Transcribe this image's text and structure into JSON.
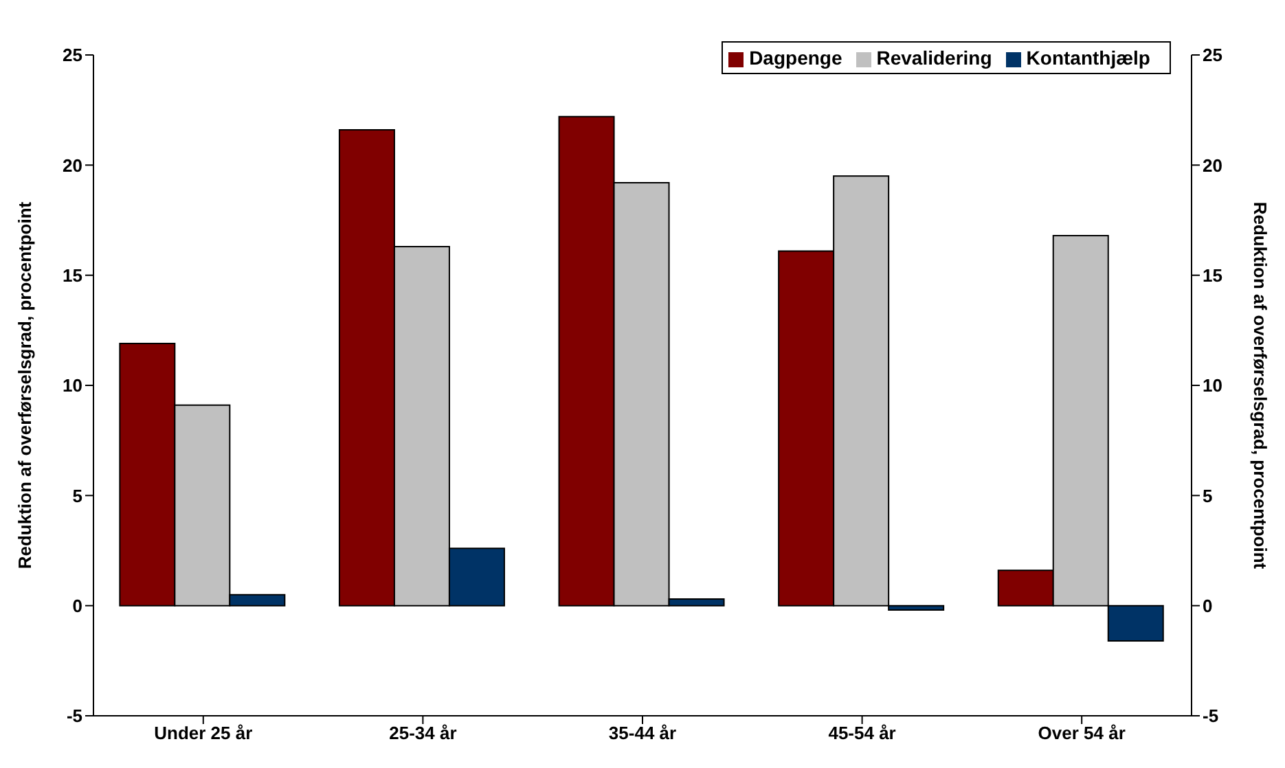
{
  "chart_data": {
    "type": "bar",
    "categories": [
      "Under 25 år",
      "25-34 år",
      "35-44 år",
      "45-54 år",
      "Over 54 år"
    ],
    "series": [
      {
        "name": "Dagpenge",
        "color": "#800000",
        "values": [
          11.9,
          21.6,
          22.2,
          16.1,
          1.6
        ]
      },
      {
        "name": "Revalidering",
        "color": "#c0c0c0",
        "values": [
          9.1,
          16.3,
          19.2,
          19.5,
          16.8
        ]
      },
      {
        "name": "Kontanthjælp",
        "color": "#003366",
        "values": [
          0.5,
          2.6,
          0.3,
          -0.2,
          -1.6
        ]
      }
    ],
    "ylabel": "Reduktion af overførselsgrad, procentpoint",
    "y2label": "Reduktion af overførselsgrad, procentpoint",
    "ylim": [
      -5,
      25
    ],
    "yticks": [
      -5,
      0,
      5,
      10,
      15,
      20,
      25
    ],
    "y2lim": [
      -5,
      25
    ],
    "y2ticks": [
      -5,
      0,
      5,
      10,
      15,
      20,
      25
    ],
    "grid": false,
    "legend": "top right"
  }
}
